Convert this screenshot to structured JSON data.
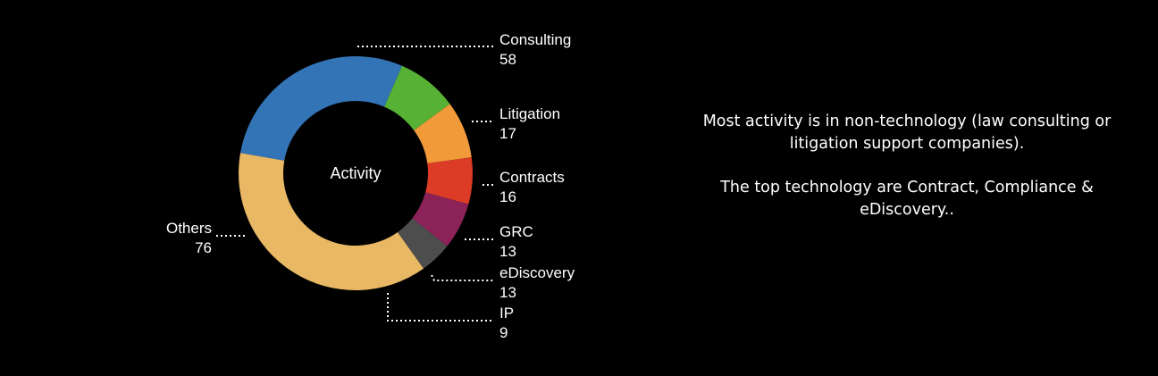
{
  "chart_data": {
    "type": "pie",
    "variant": "donut",
    "title": "Activity",
    "slices": [
      {
        "label": "Consulting",
        "value": 58,
        "color": "#3374b7"
      },
      {
        "label": "Litigation",
        "value": 17,
        "color": "#57b134"
      },
      {
        "label": "Contracts",
        "value": 16,
        "color": "#f19a39"
      },
      {
        "label": "GRC",
        "value": 13,
        "color": "#dc3b26"
      },
      {
        "label": "eDiscovery",
        "value": 13,
        "color": "#8b2359"
      },
      {
        "label": "IP",
        "value": 9,
        "color": "#4d4d4d"
      },
      {
        "label": "Others",
        "value": 76,
        "color": "#e8b865"
      }
    ]
  },
  "commentary": {
    "paragraph_1": "Most activity is in non-technology (law consulting or litigation support companies).",
    "paragraph_2": "The top technology are Contract, Compliance & eDiscovery.."
  }
}
